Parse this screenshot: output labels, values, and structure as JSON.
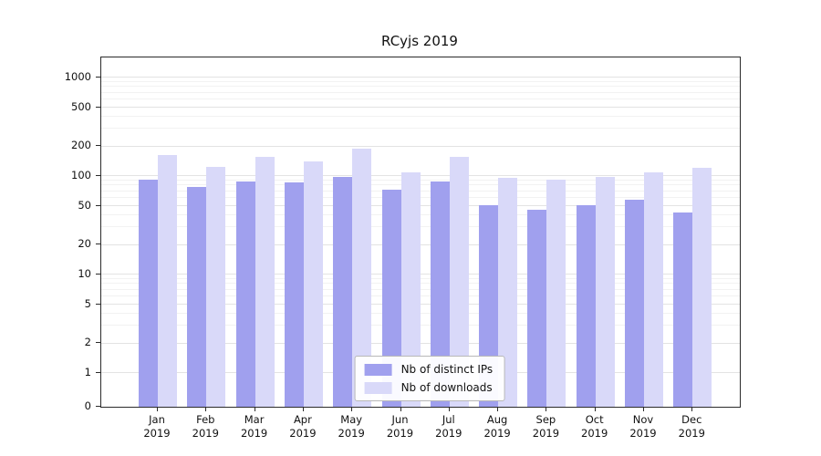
{
  "title": "RCyjs 2019",
  "chart_data": {
    "type": "bar",
    "title": "RCyjs 2019",
    "xlabel": "",
    "ylabel": "",
    "scale": "symlog",
    "grid": true,
    "legend_position": "lower center",
    "year": "2019",
    "categories": [
      "Jan",
      "Feb",
      "Mar",
      "Apr",
      "May",
      "Jun",
      "Jul",
      "Aug",
      "Sep",
      "Oct",
      "Nov",
      "Dec"
    ],
    "yticks": [
      0,
      1,
      2,
      5,
      10,
      20,
      50,
      100,
      200,
      500,
      1000
    ],
    "ylim": [
      0,
      1300
    ],
    "series": [
      {
        "name": "Nb of distinct IPs",
        "color": "#a0a0ee",
        "values": [
          92,
          78,
          88,
          86,
          97,
          72,
          88,
          51,
          45,
          51,
          58,
          43
        ]
      },
      {
        "name": "Nb of downloads",
        "color": "#d9d9f9",
        "values": [
          165,
          125,
          155,
          140,
          190,
          110,
          155,
          95,
          92,
          98,
          110,
          120
        ]
      }
    ]
  }
}
